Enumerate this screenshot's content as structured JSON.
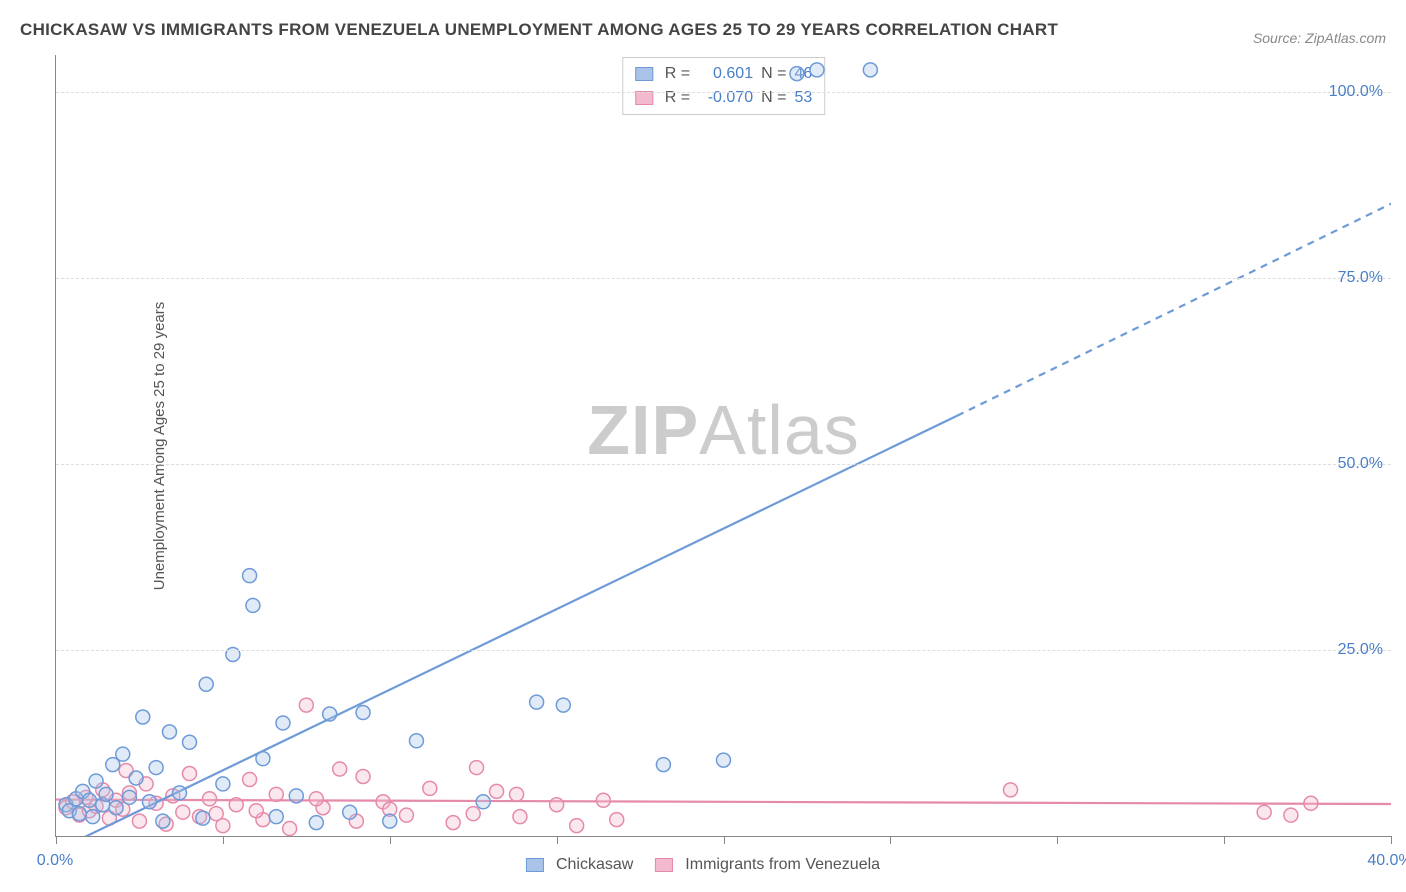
{
  "title": "CHICKASAW VS IMMIGRANTS FROM VENEZUELA UNEMPLOYMENT AMONG AGES 25 TO 29 YEARS CORRELATION CHART",
  "source": "Source: ZipAtlas.com",
  "ylabel": "Unemployment Among Ages 25 to 29 years",
  "watermark_left": "ZIP",
  "watermark_right": "Atlas",
  "chart": {
    "type": "scatter",
    "xlim": [
      0,
      40
    ],
    "ylim": [
      0,
      105
    ],
    "xtick_step": 5,
    "xtick_labels": {
      "0": "0.0%",
      "40": "40.0%"
    },
    "ytick_positions": [
      25,
      50,
      75,
      100
    ],
    "ytick_labels": [
      "25.0%",
      "50.0%",
      "75.0%",
      "100.0%"
    ],
    "background_color": "#ffffff",
    "grid_color": "#dddddd",
    "axis_color": "#888888",
    "tick_label_color": "#4a7fc8",
    "marker_radius": 7,
    "marker_stroke_width": 1.5,
    "fill_opacity": 0.35,
    "series": [
      {
        "name": "Chickasaw",
        "color": "#6e9bd8",
        "fill": "#a9c4e8",
        "r": "0.601",
        "n": "46",
        "trend": {
          "x1": 0,
          "y1": -2,
          "x2": 27,
          "y2": 56.5,
          "solid_until_x": 27,
          "dash_to_x": 40,
          "dash_to_y": 85,
          "stroke_width": 2.2
        },
        "points": [
          [
            0.3,
            4.2
          ],
          [
            0.4,
            3.4
          ],
          [
            0.6,
            5.0
          ],
          [
            0.7,
            3.0
          ],
          [
            0.8,
            6.0
          ],
          [
            1.0,
            4.8
          ],
          [
            1.1,
            2.6
          ],
          [
            1.2,
            7.4
          ],
          [
            1.4,
            4.2
          ],
          [
            1.5,
            5.6
          ],
          [
            1.7,
            9.6
          ],
          [
            1.8,
            3.8
          ],
          [
            2.0,
            11.0
          ],
          [
            2.2,
            5.2
          ],
          [
            2.4,
            7.8
          ],
          [
            2.6,
            16.0
          ],
          [
            2.8,
            4.6
          ],
          [
            3.0,
            9.2
          ],
          [
            3.4,
            14.0
          ],
          [
            3.7,
            5.8
          ],
          [
            4.0,
            12.6
          ],
          [
            4.5,
            20.4
          ],
          [
            5.0,
            7.0
          ],
          [
            5.3,
            24.4
          ],
          [
            5.8,
            35.0
          ],
          [
            5.9,
            31.0
          ],
          [
            6.2,
            10.4
          ],
          [
            6.8,
            15.2
          ],
          [
            7.2,
            5.4
          ],
          [
            7.8,
            1.8
          ],
          [
            8.2,
            16.4
          ],
          [
            8.8,
            3.2
          ],
          [
            9.2,
            16.6
          ],
          [
            10.0,
            2.0
          ],
          [
            10.8,
            12.8
          ],
          [
            12.8,
            4.6
          ],
          [
            14.4,
            18.0
          ],
          [
            15.2,
            17.6
          ],
          [
            18.2,
            9.6
          ],
          [
            20.0,
            10.2
          ],
          [
            22.2,
            102.5
          ],
          [
            22.8,
            103.0
          ],
          [
            24.4,
            103.0
          ],
          [
            3.2,
            2.0
          ],
          [
            4.4,
            2.4
          ],
          [
            6.6,
            2.6
          ]
        ]
      },
      {
        "name": "Immigrants from Venezuela",
        "color": "#e68aaa",
        "fill": "#f3b9ce",
        "r": "-0.070",
        "n": "53",
        "trend": {
          "x1": 0,
          "y1": 4.9,
          "x2": 40,
          "y2": 4.3,
          "stroke_width": 2.2
        },
        "points": [
          [
            0.3,
            3.8
          ],
          [
            0.5,
            4.6
          ],
          [
            0.7,
            2.8
          ],
          [
            0.9,
            5.2
          ],
          [
            1.0,
            3.4
          ],
          [
            1.2,
            4.0
          ],
          [
            1.4,
            6.2
          ],
          [
            1.6,
            2.4
          ],
          [
            1.8,
            4.8
          ],
          [
            2.0,
            3.6
          ],
          [
            2.2,
            5.8
          ],
          [
            2.5,
            2.0
          ],
          [
            2.7,
            7.0
          ],
          [
            3.0,
            4.4
          ],
          [
            3.3,
            1.6
          ],
          [
            3.5,
            5.4
          ],
          [
            3.8,
            3.2
          ],
          [
            4.0,
            8.4
          ],
          [
            4.3,
            2.6
          ],
          [
            4.6,
            5.0
          ],
          [
            5.0,
            1.4
          ],
          [
            5.4,
            4.2
          ],
          [
            5.8,
            7.6
          ],
          [
            6.2,
            2.2
          ],
          [
            6.6,
            5.6
          ],
          [
            7.0,
            1.0
          ],
          [
            7.5,
            17.6
          ],
          [
            8.0,
            3.8
          ],
          [
            8.5,
            9.0
          ],
          [
            9.0,
            2.0
          ],
          [
            9.2,
            8.0
          ],
          [
            9.8,
            4.6
          ],
          [
            10.5,
            2.8
          ],
          [
            11.2,
            6.4
          ],
          [
            11.9,
            1.8
          ],
          [
            12.5,
            3.0
          ],
          [
            12.6,
            9.2
          ],
          [
            13.2,
            6.0
          ],
          [
            13.8,
            5.6
          ],
          [
            13.9,
            2.6
          ],
          [
            15.0,
            4.2
          ],
          [
            15.6,
            1.4
          ],
          [
            16.4,
            4.8
          ],
          [
            16.8,
            2.2
          ],
          [
            28.6,
            6.2
          ],
          [
            36.2,
            3.2
          ],
          [
            37.0,
            2.8
          ],
          [
            37.6,
            4.4
          ],
          [
            2.1,
            8.8
          ],
          [
            4.8,
            3.0
          ],
          [
            6.0,
            3.4
          ],
          [
            7.8,
            5.0
          ],
          [
            10.0,
            3.6
          ]
        ]
      }
    ]
  },
  "legend": {
    "items": [
      {
        "label": "Chickasaw",
        "fill": "#a9c4e8",
        "border": "#6e9bd8"
      },
      {
        "label": "Immigrants from Venezuela",
        "fill": "#f3b9ce",
        "border": "#e68aaa"
      }
    ]
  },
  "stats_labels": {
    "r_prefix": "R =",
    "n_prefix": "N ="
  }
}
